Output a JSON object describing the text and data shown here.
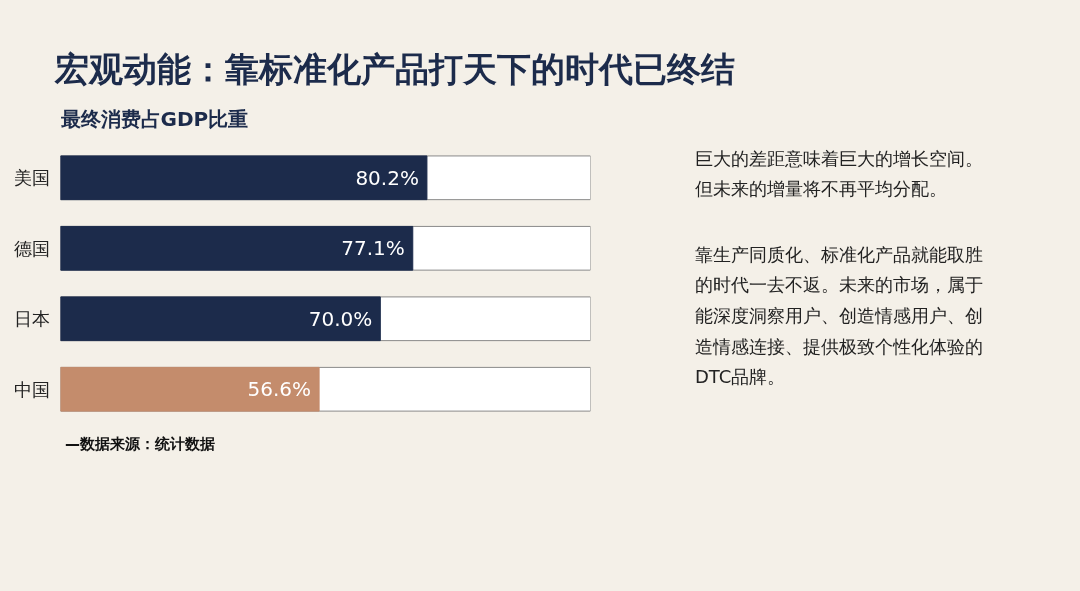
{
  "chart_data": {
    "type": "bar",
    "orientation": "horizontal",
    "title": "宏观动能：靠标准化产品打天下的时代已终结",
    "subtitle": "最终消费占GDP比重",
    "categories": [
      "美国",
      "德国",
      "日本",
      "中国"
    ],
    "values": [
      80.2,
      77.1,
      70.0,
      56.6
    ],
    "colors": [
      "#1c2b4b",
      "#1c2b4b",
      "#1c2b4b",
      "#c48c6c"
    ],
    "value_labels": [
      "80.2%",
      "77.1%",
      "70.0%",
      "56.6%"
    ],
    "xlim": [
      0,
      116
    ],
    "tick_labels": "y",
    "grid": false,
    "annotations": [
      "巨大的差距意味着巨大的增长空间。但未来的增量将不再平均分配。",
      "靠生产同质化、标准化产品就能取胜的时代一去不返。未来的市场，属于能深度洞察用户、创造情感用户、创造情感连接、提供极致个性化体验的DTC品牌。",
      "—数据来源：统计数据"
    ]
  }
}
